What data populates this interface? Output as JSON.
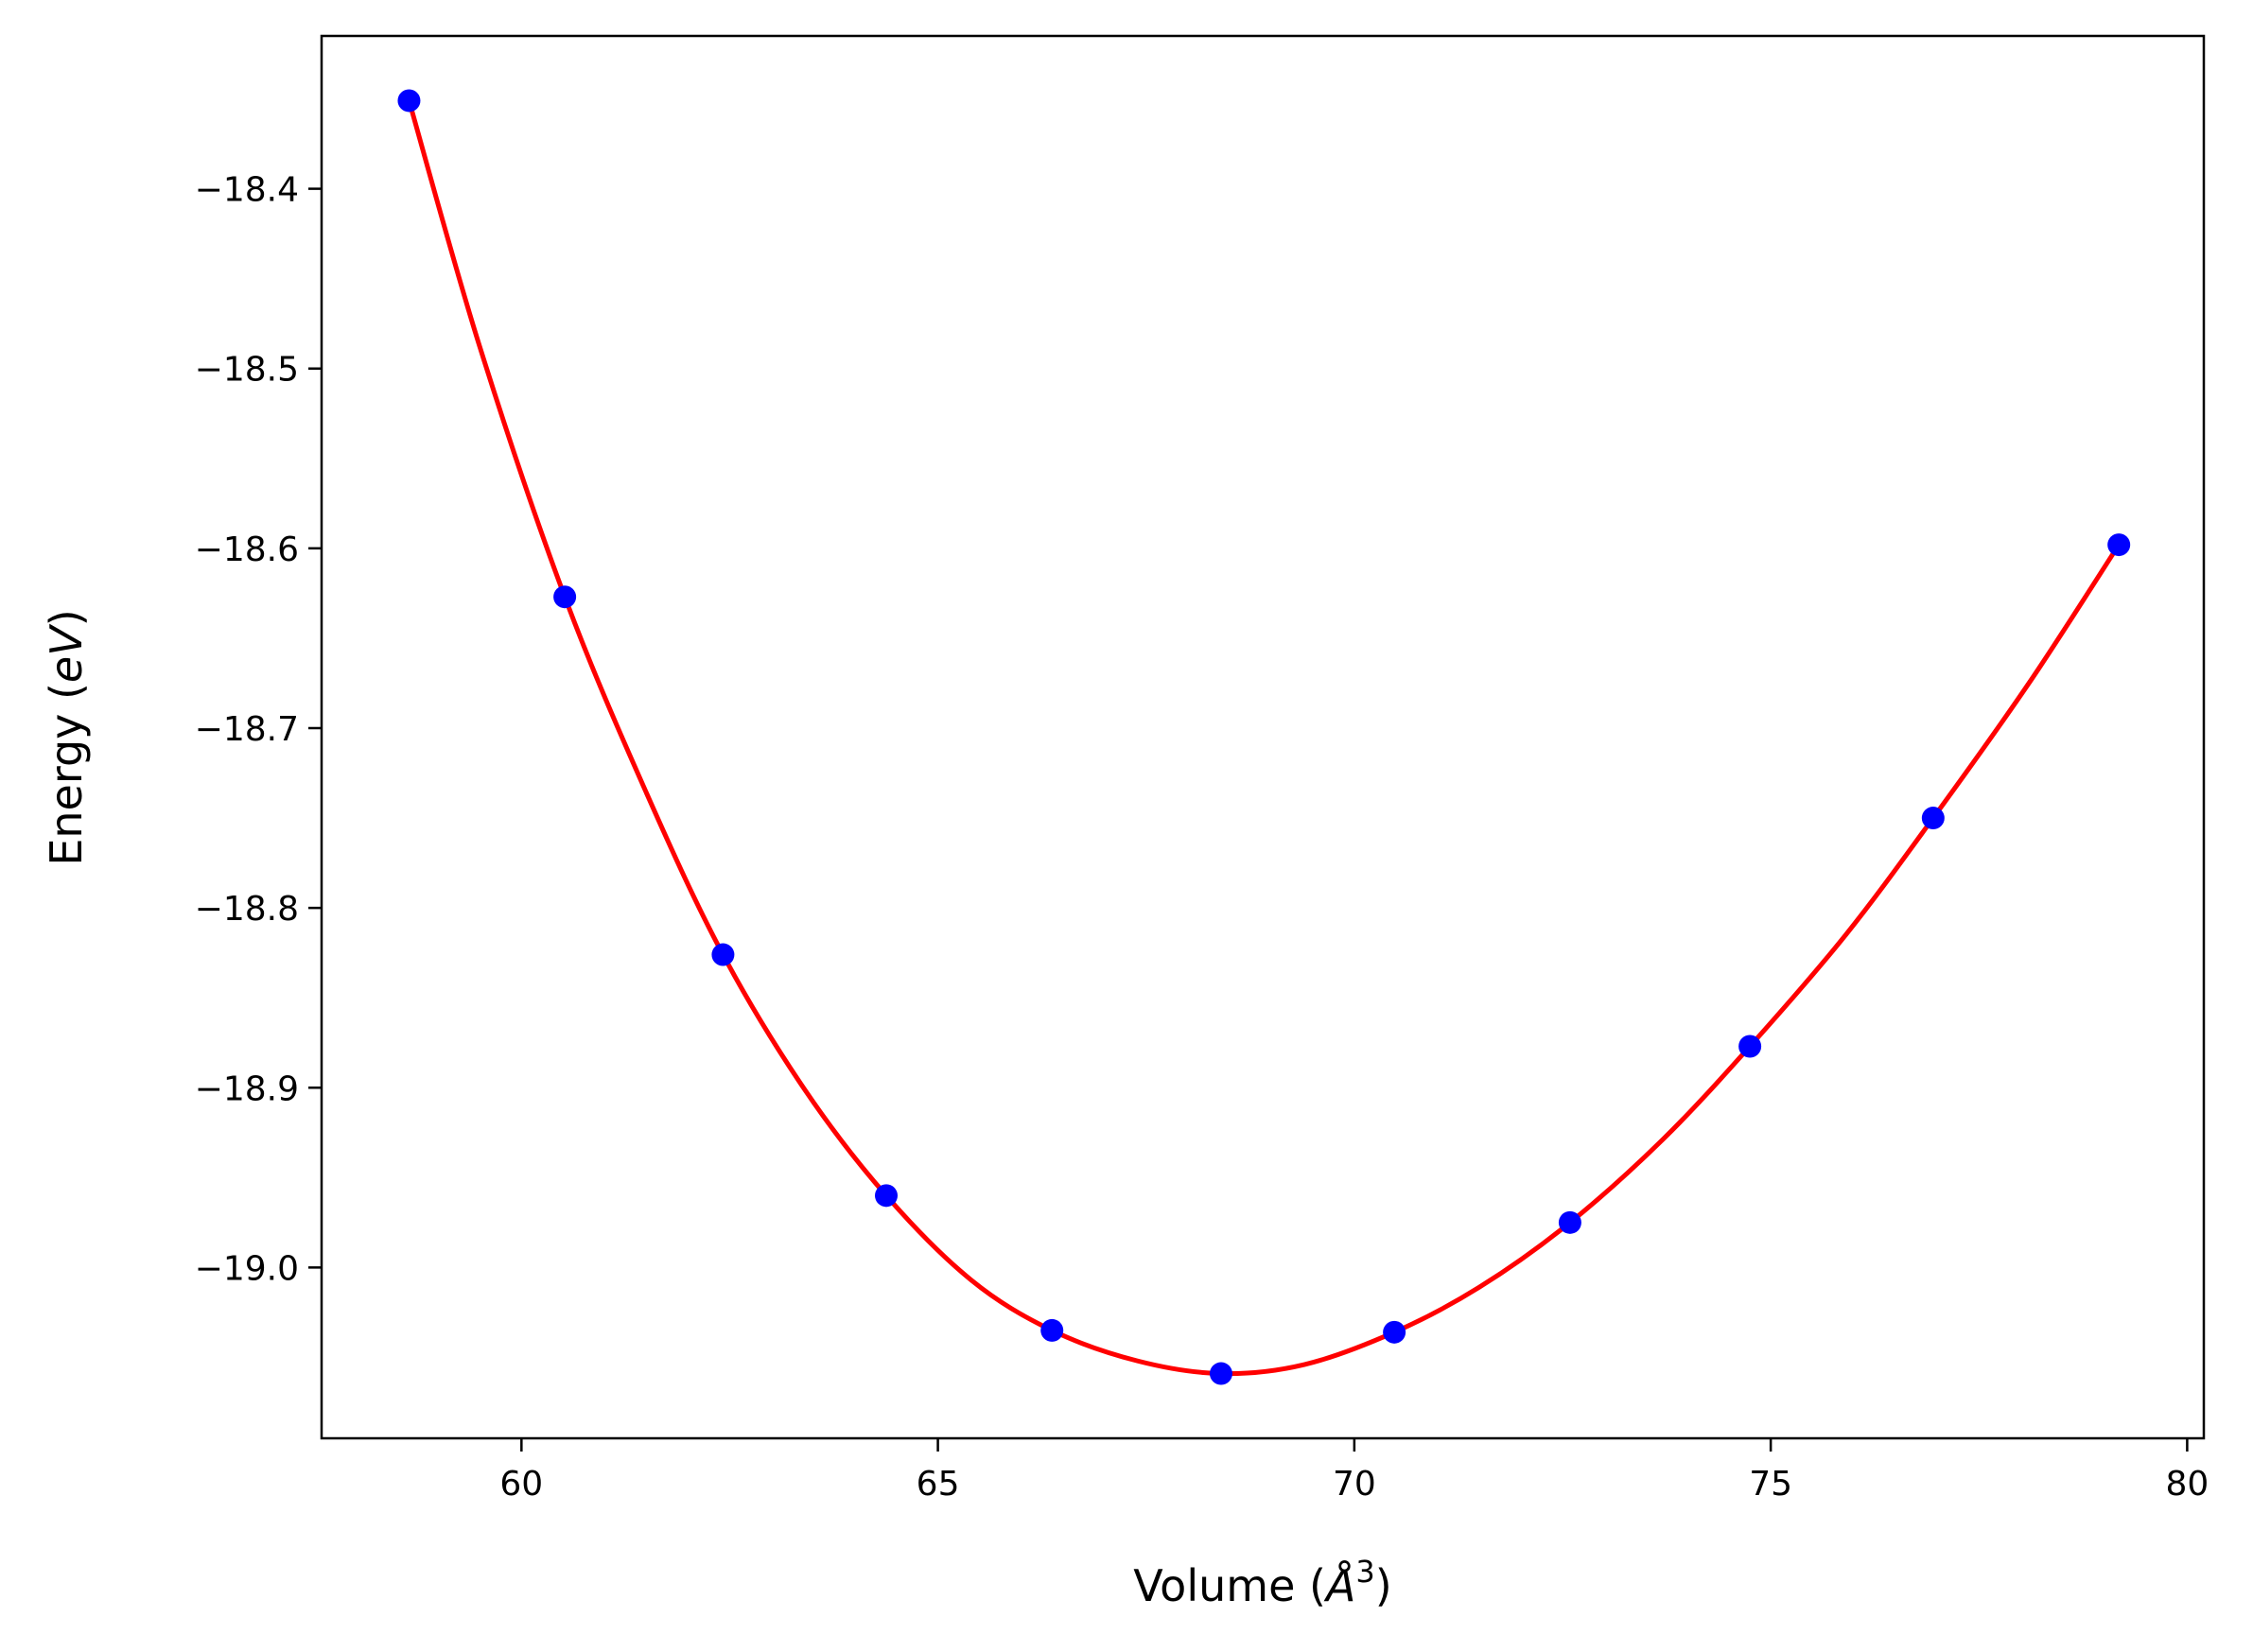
{
  "chart_data": {
    "type": "line",
    "xlabel": "Volume (Å3)",
    "ylabel": "Energy (eV)",
    "xlabel_parts": {
      "prefix": "Volume (",
      "symbol": "Å",
      "exponent": "3",
      "suffix": ")"
    },
    "ylabel_parts": {
      "prefix": "Energy (",
      "unit": "eV",
      "suffix": ")"
    },
    "xlim": [
      57.6,
      80.2
    ],
    "ylim": [
      -19.095,
      -18.315
    ],
    "x_ticks": [
      60,
      65,
      70,
      75,
      80
    ],
    "x_tick_labels": [
      "60",
      "65",
      "70",
      "75",
      "80"
    ],
    "y_ticks": [
      -18.4,
      -18.5,
      -18.6,
      -18.7,
      -18.8,
      -18.9,
      -19.0
    ],
    "y_tick_labels": [
      "−18.4",
      "−18.5",
      "−18.6",
      "−18.7",
      "−18.8",
      "−18.9",
      "−19.0"
    ],
    "grid": false,
    "legend": "none",
    "series": [
      {
        "kind": "scatter",
        "color": "#0000ff",
        "x": [
          58.65,
          60.52,
          62.42,
          64.38,
          66.37,
          68.4,
          70.48,
          72.59,
          74.75,
          76.95,
          79.18
        ],
        "y": [
          -18.351,
          -18.627,
          -18.826,
          -18.96,
          -19.035,
          -19.059,
          -19.036,
          -18.975,
          -18.877,
          -18.75,
          -18.598
        ]
      },
      {
        "kind": "line",
        "color": "#ff0000",
        "x": [
          58.65,
          59.5,
          60.52,
          61.5,
          62.42,
          63.4,
          64.38,
          65.4,
          66.37,
          67.4,
          68.4,
          69.4,
          70.48,
          71.5,
          72.59,
          73.7,
          74.75,
          75.9,
          76.95,
          78.1,
          79.18
        ],
        "y": [
          -18.351,
          -18.488,
          -18.627,
          -18.736,
          -18.826,
          -18.901,
          -18.96,
          -19.007,
          -19.035,
          -19.052,
          -19.059,
          -19.054,
          -19.036,
          -19.011,
          -18.975,
          -18.929,
          -18.877,
          -18.815,
          -18.75,
          -18.675,
          -18.598
        ]
      }
    ]
  }
}
